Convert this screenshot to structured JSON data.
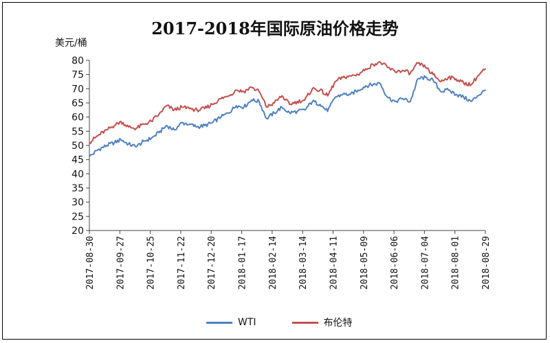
{
  "chart_data": {
    "type": "line",
    "title": "2017-2018年国际原油价格走势",
    "ylabel": "美元/桶",
    "ylim": [
      20,
      80
    ],
    "yticks": [
      20,
      25,
      30,
      35,
      40,
      45,
      50,
      55,
      60,
      65,
      70,
      75,
      80
    ],
    "xtick_labels": [
      "2017-08-30",
      "2017-09-27",
      "2017-10-25",
      "2017-11-22",
      "2017-12-20",
      "2018-01-17",
      "2018-02-14",
      "2018-03-14",
      "2018-04-11",
      "2018-05-09",
      "2018-06-06",
      "2018-07-04",
      "2018-08-01",
      "2018-08-29"
    ],
    "x_range": [
      "2017-08-30",
      "2018-08-29"
    ],
    "grid": false,
    "legend_position": "bottom",
    "series": [
      {
        "name": "WTI",
        "color": "#4f81bd",
        "points": [
          [
            "2017-08-30",
            46.0
          ],
          [
            "2017-09-07",
            48.5
          ],
          [
            "2017-09-15",
            50.0
          ],
          [
            "2017-09-22",
            51.0
          ],
          [
            "2017-09-28",
            52.0
          ],
          [
            "2017-10-05",
            50.5
          ],
          [
            "2017-10-12",
            49.5
          ],
          [
            "2017-10-19",
            51.5
          ],
          [
            "2017-10-26",
            52.5
          ],
          [
            "2017-11-02",
            54.5
          ],
          [
            "2017-11-09",
            57.0
          ],
          [
            "2017-11-16",
            55.5
          ],
          [
            "2017-11-23",
            58.0
          ],
          [
            "2017-11-30",
            57.5
          ],
          [
            "2017-12-07",
            56.5
          ],
          [
            "2017-12-14",
            57.0
          ],
          [
            "2017-12-21",
            58.0
          ],
          [
            "2017-12-29",
            60.0
          ],
          [
            "2018-01-05",
            61.5
          ],
          [
            "2018-01-12",
            64.0
          ],
          [
            "2018-01-19",
            63.5
          ],
          [
            "2018-01-26",
            66.0
          ],
          [
            "2018-02-02",
            65.5
          ],
          [
            "2018-02-09",
            59.5
          ],
          [
            "2018-02-16",
            61.5
          ],
          [
            "2018-02-23",
            63.5
          ],
          [
            "2018-03-02",
            61.5
          ],
          [
            "2018-03-09",
            62.0
          ],
          [
            "2018-03-16",
            62.5
          ],
          [
            "2018-03-23",
            65.5
          ],
          [
            "2018-03-30",
            64.5
          ],
          [
            "2018-04-06",
            62.0
          ],
          [
            "2018-04-13",
            67.0
          ],
          [
            "2018-04-20",
            68.0
          ],
          [
            "2018-04-27",
            68.0
          ],
          [
            "2018-05-04",
            69.5
          ],
          [
            "2018-05-11",
            71.0
          ],
          [
            "2018-05-18",
            71.5
          ],
          [
            "2018-05-24",
            72.0
          ],
          [
            "2018-05-31",
            67.0
          ],
          [
            "2018-06-07",
            65.5
          ],
          [
            "2018-06-14",
            66.5
          ],
          [
            "2018-06-21",
            65.5
          ],
          [
            "2018-06-28",
            73.5
          ],
          [
            "2018-07-05",
            74.0
          ],
          [
            "2018-07-12",
            73.0
          ],
          [
            "2018-07-19",
            69.0
          ],
          [
            "2018-07-26",
            69.5
          ],
          [
            "2018-08-02",
            68.0
          ],
          [
            "2018-08-09",
            67.0
          ],
          [
            "2018-08-16",
            65.5
          ],
          [
            "2018-08-22",
            67.5
          ],
          [
            "2018-08-29",
            69.5
          ]
        ]
      },
      {
        "name": "布伦特",
        "color": "#c0504d",
        "points": [
          [
            "2017-08-30",
            51.0
          ],
          [
            "2017-09-07",
            53.5
          ],
          [
            "2017-09-15",
            55.5
          ],
          [
            "2017-09-22",
            57.0
          ],
          [
            "2017-09-28",
            58.5
          ],
          [
            "2017-10-05",
            56.5
          ],
          [
            "2017-10-12",
            56.0
          ],
          [
            "2017-10-19",
            57.5
          ],
          [
            "2017-10-26",
            58.5
          ],
          [
            "2017-11-02",
            61.0
          ],
          [
            "2017-11-09",
            64.0
          ],
          [
            "2017-11-16",
            62.5
          ],
          [
            "2017-11-23",
            63.5
          ],
          [
            "2017-11-30",
            63.0
          ],
          [
            "2017-12-07",
            62.5
          ],
          [
            "2017-12-14",
            63.0
          ],
          [
            "2017-12-21",
            64.5
          ],
          [
            "2017-12-29",
            66.5
          ],
          [
            "2018-01-05",
            67.5
          ],
          [
            "2018-01-12",
            69.5
          ],
          [
            "2018-01-19",
            69.0
          ],
          [
            "2018-01-26",
            70.5
          ],
          [
            "2018-02-02",
            69.0
          ],
          [
            "2018-02-09",
            63.5
          ],
          [
            "2018-02-16",
            65.0
          ],
          [
            "2018-02-23",
            67.5
          ],
          [
            "2018-03-02",
            64.5
          ],
          [
            "2018-03-09",
            65.5
          ],
          [
            "2018-03-16",
            66.0
          ],
          [
            "2018-03-23",
            70.0
          ],
          [
            "2018-03-30",
            69.5
          ],
          [
            "2018-04-06",
            67.5
          ],
          [
            "2018-04-13",
            72.5
          ],
          [
            "2018-04-20",
            74.0
          ],
          [
            "2018-04-27",
            74.5
          ],
          [
            "2018-05-04",
            75.0
          ],
          [
            "2018-05-11",
            77.0
          ],
          [
            "2018-05-18",
            78.5
          ],
          [
            "2018-05-24",
            79.5
          ],
          [
            "2018-05-31",
            77.5
          ],
          [
            "2018-06-07",
            76.0
          ],
          [
            "2018-06-14",
            76.5
          ],
          [
            "2018-06-21",
            75.5
          ],
          [
            "2018-06-28",
            79.0
          ],
          [
            "2018-07-05",
            77.5
          ],
          [
            "2018-07-12",
            75.0
          ],
          [
            "2018-07-19",
            72.5
          ],
          [
            "2018-07-26",
            74.0
          ],
          [
            "2018-08-02",
            73.5
          ],
          [
            "2018-08-09",
            72.0
          ],
          [
            "2018-08-16",
            71.5
          ],
          [
            "2018-08-22",
            74.5
          ],
          [
            "2018-08-29",
            77.0
          ]
        ]
      }
    ]
  }
}
